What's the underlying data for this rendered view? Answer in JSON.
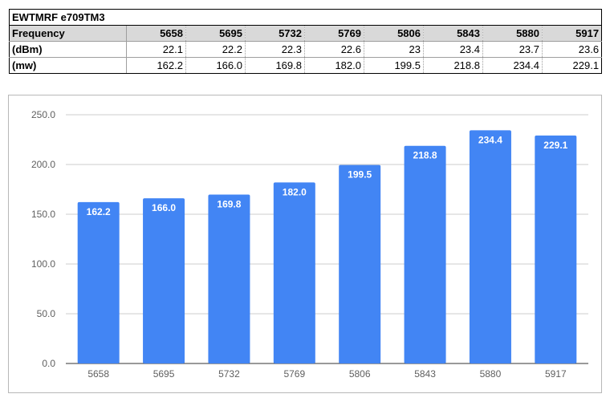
{
  "sheet": {
    "title": "EWTMRF e709TM3",
    "rows": [
      {
        "label": "Frequency",
        "values": [
          "5658",
          "5695",
          "5732",
          "5769",
          "5806",
          "5843",
          "5880",
          "5917"
        ]
      },
      {
        "label": "(dBm)",
        "values": [
          "22.1",
          "22.2",
          "22.3",
          "22.6",
          "23",
          "23.4",
          "23.7",
          "23.6"
        ]
      },
      {
        "label": "(mw)",
        "values": [
          "162.2",
          "166.0",
          "169.8",
          "182.0",
          "199.5",
          "218.8",
          "234.4",
          "229.1"
        ]
      }
    ],
    "header_fill": "#d9d9d9"
  },
  "chart_data": {
    "type": "bar",
    "categories": [
      "5658",
      "5695",
      "5732",
      "5769",
      "5806",
      "5843",
      "5880",
      "5917"
    ],
    "values": [
      162.2,
      166.0,
      169.8,
      182.0,
      199.5,
      218.8,
      234.4,
      229.1
    ],
    "data_labels": [
      "162.2",
      "166.0",
      "169.8",
      "182.0",
      "199.5",
      "218.8",
      "234.4",
      "229.1"
    ],
    "yticks": [
      "0.0",
      "50.0",
      "100.0",
      "150.0",
      "200.0",
      "250.0"
    ],
    "ylim": [
      0,
      250
    ],
    "grid": true,
    "bar_color": "#4285f4",
    "legend": "none"
  }
}
